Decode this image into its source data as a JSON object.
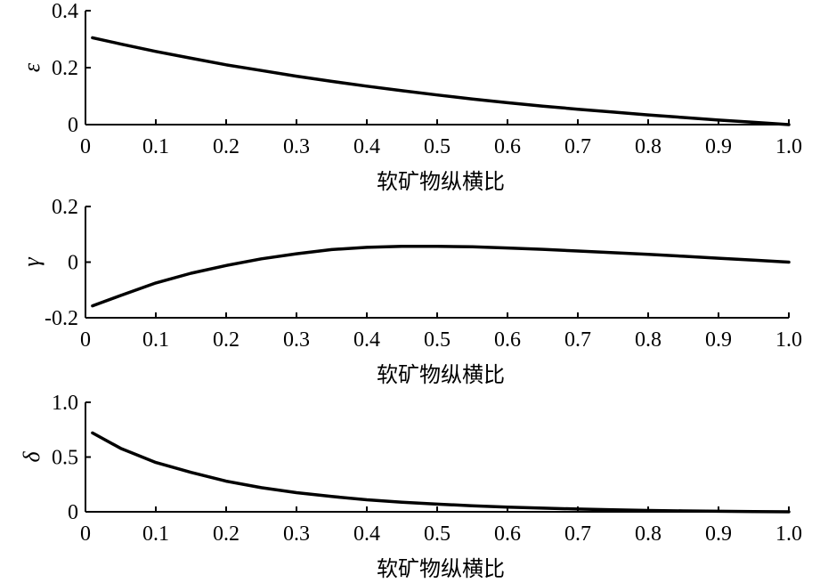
{
  "chart_data": [
    {
      "type": "line",
      "ylabel": "ε",
      "xlabel": "软矿物纵横比",
      "xlim": [
        0,
        1.0
      ],
      "ylim": [
        0,
        0.4
      ],
      "xticks": [
        "0",
        "0.1",
        "0.2",
        "0.3",
        "0.4",
        "0.5",
        "0.6",
        "0.7",
        "0.8",
        "0.9",
        "1.0"
      ],
      "yticks": [
        "0",
        "0.2",
        "0.4"
      ],
      "ytick_values": [
        0,
        0.2,
        0.4
      ],
      "x": [
        0.01,
        0.05,
        0.1,
        0.15,
        0.2,
        0.25,
        0.3,
        0.35,
        0.4,
        0.45,
        0.5,
        0.55,
        0.6,
        0.65,
        0.7,
        0.75,
        0.8,
        0.85,
        0.9,
        0.95,
        1.0
      ],
      "y": [
        0.305,
        0.283,
        0.257,
        0.233,
        0.21,
        0.19,
        0.17,
        0.152,
        0.135,
        0.119,
        0.104,
        0.09,
        0.077,
        0.065,
        0.054,
        0.044,
        0.034,
        0.025,
        0.016,
        0.008,
        0.0
      ]
    },
    {
      "type": "line",
      "ylabel": "γ",
      "xlabel": "软矿物纵横比",
      "xlim": [
        0,
        1.0
      ],
      "ylim": [
        -0.2,
        0.2
      ],
      "xticks": [
        "0",
        "0.1",
        "0.2",
        "0.3",
        "0.4",
        "0.5",
        "0.6",
        "0.7",
        "0.8",
        "0.9",
        "1.0"
      ],
      "yticks": [
        "-0.2",
        "0",
        "0.2"
      ],
      "ytick_values": [
        -0.2,
        0,
        0.2
      ],
      "x": [
        0.01,
        0.05,
        0.1,
        0.15,
        0.2,
        0.25,
        0.3,
        0.35,
        0.4,
        0.45,
        0.5,
        0.55,
        0.6,
        0.65,
        0.7,
        0.75,
        0.8,
        0.85,
        0.9,
        0.95,
        1.0
      ],
      "y": [
        -0.157,
        -0.12,
        -0.075,
        -0.04,
        -0.012,
        0.012,
        0.03,
        0.045,
        0.053,
        0.057,
        0.057,
        0.055,
        0.051,
        0.046,
        0.04,
        0.034,
        0.028,
        0.021,
        0.014,
        0.007,
        0.0
      ]
    },
    {
      "type": "line",
      "ylabel": "δ",
      "xlabel": "软矿物纵横比",
      "xlim": [
        0,
        1.0
      ],
      "ylim": [
        0,
        1.0
      ],
      "xticks": [
        "0",
        "0.1",
        "0.2",
        "0.3",
        "0.4",
        "0.5",
        "0.6",
        "0.7",
        "0.8",
        "0.9",
        "1.0"
      ],
      "yticks": [
        "0",
        "0.5",
        "1.0"
      ],
      "ytick_values": [
        0,
        0.5,
        1.0
      ],
      "x": [
        0.01,
        0.05,
        0.1,
        0.15,
        0.2,
        0.25,
        0.3,
        0.35,
        0.4,
        0.45,
        0.5,
        0.55,
        0.6,
        0.65,
        0.7,
        0.75,
        0.8,
        0.85,
        0.9,
        0.95,
        1.0
      ],
      "y": [
        0.72,
        0.58,
        0.45,
        0.36,
        0.28,
        0.22,
        0.175,
        0.14,
        0.11,
        0.088,
        0.07,
        0.055,
        0.043,
        0.033,
        0.025,
        0.018,
        0.012,
        0.008,
        0.005,
        0.002,
        0.0
      ]
    }
  ]
}
